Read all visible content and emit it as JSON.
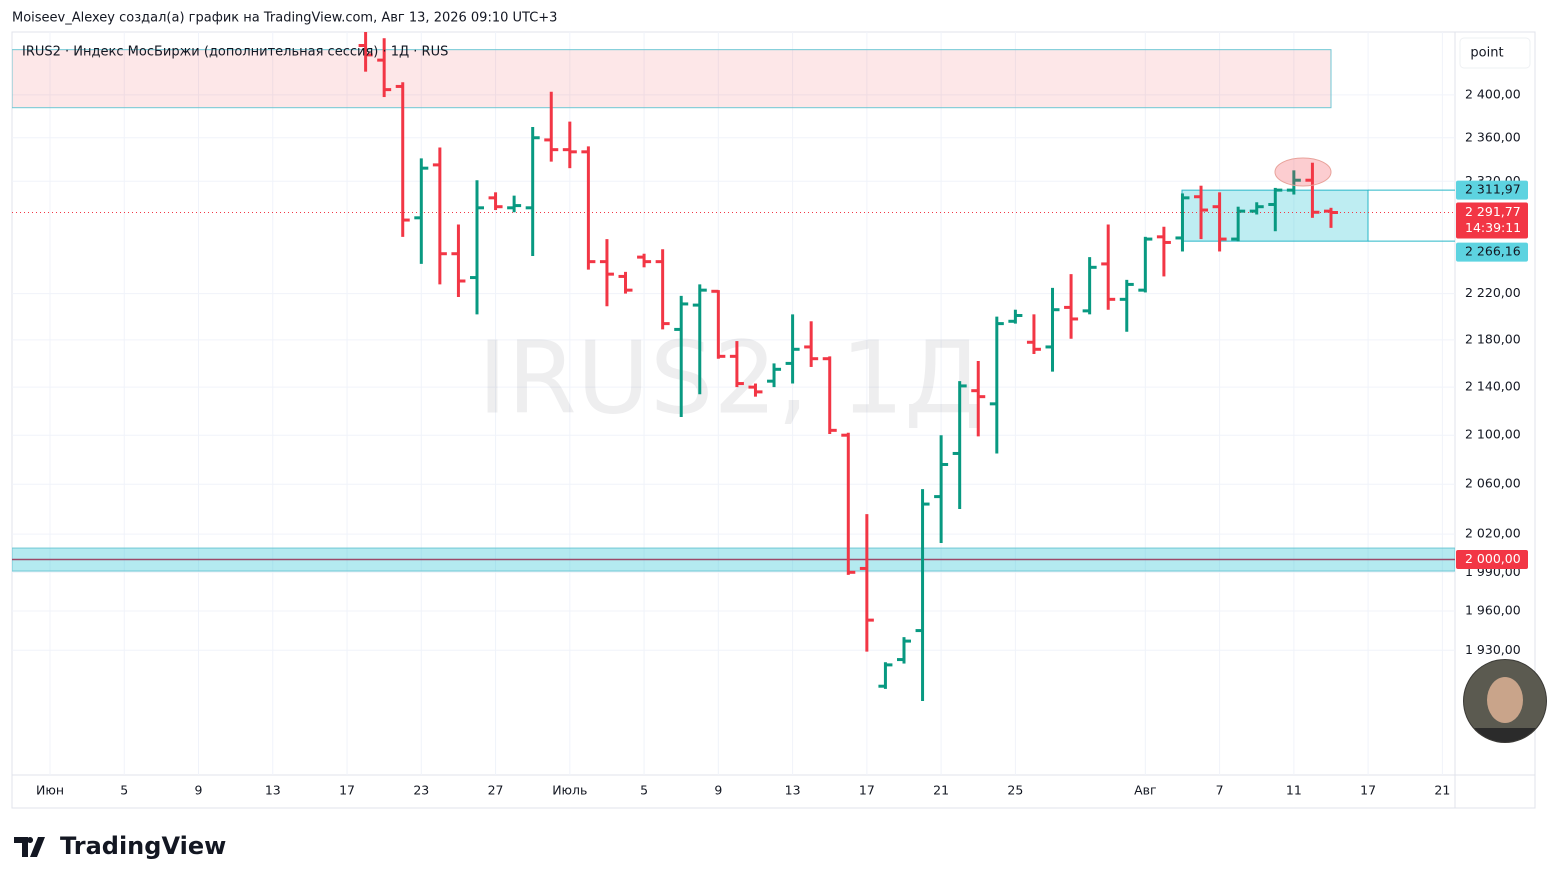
{
  "header": "Moiseev_Alexey создал(а) график на TradingView.com, Авг 13, 2026 09:10 UTC+3",
  "brand": "TradingView",
  "chart_data": {
    "type": "ohlc",
    "title": "IRUS2 · Индекс МосБиржи (дополнительная сессия) · 1Д · RUS",
    "watermark": "IRUS2, 1Д",
    "scale_button": "point",
    "log": true,
    "grid": true,
    "up_color": "#089981",
    "down_color": "#f23645",
    "categories": [
      "Июн",
      null,
      null,
      null,
      "5",
      null,
      null,
      null,
      "9",
      null,
      null,
      null,
      "13",
      null,
      null,
      null,
      "17",
      null,
      null,
      null,
      "23",
      null,
      null,
      null,
      "27",
      null,
      null,
      null,
      "Июль",
      null,
      null,
      null,
      "5",
      null,
      null,
      null,
      "9",
      null,
      null,
      null,
      "13",
      null,
      null,
      null,
      "17",
      null,
      null,
      null,
      "21",
      null,
      null,
      null,
      "25",
      null,
      null,
      null,
      null,
      null,
      null,
      "Авг",
      null,
      null,
      null,
      "7",
      null,
      null,
      null,
      "11",
      null,
      null,
      null,
      "17",
      null,
      null,
      null,
      "21"
    ],
    "open": [
      null,
      null,
      null,
      null,
      null,
      null,
      null,
      null,
      null,
      null,
      null,
      null,
      null,
      null,
      null,
      null,
      null,
      2447,
      2433,
      2408,
      2287,
      2335,
      2255,
      2234,
      2305,
      2296,
      2296,
      2358,
      2349,
      2347,
      2248,
      2235,
      2252,
      2248,
      2189,
      2210,
      2222,
      2166,
      2140,
      2145,
      2160,
      2174,
      2164,
      2100,
      1993,
      1903,
      1923,
      1945,
      2050,
      2085,
      2137,
      2126,
      2196,
      2178,
      2174,
      2208,
      2205,
      2246,
      2215,
      2223,
      2270,
      2269,
      2306,
      2297,
      2268,
      2293,
      2299,
      2312,
      2321,
      2293,
      null,
      null,
      null,
      null,
      null,
      null
    ],
    "high": [
      null,
      null,
      null,
      null,
      null,
      null,
      null,
      null,
      null,
      null,
      null,
      null,
      null,
      null,
      null,
      null,
      null,
      2460,
      2454,
      2412,
      2341,
      2351,
      2281,
      2321,
      2310,
      2307,
      2370,
      2403,
      2375,
      2352,
      2268,
      2239,
      2255,
      2259,
      2218,
      2228,
      2223,
      2179,
      2143,
      2160,
      2202,
      2196,
      2166,
      2102,
      2036,
      1921,
      1940,
      2056,
      2100,
      2145,
      2162,
      2200,
      2206,
      2202,
      2225,
      2237,
      2252,
      2281,
      2232,
      2270,
      2279,
      2309,
      2316,
      2310,
      2297,
      2301,
      2314,
      2330,
      2337,
      2296,
      null,
      null,
      null,
      null,
      null,
      null
    ],
    "low": [
      null,
      null,
      null,
      null,
      null,
      null,
      null,
      null,
      null,
      null,
      null,
      null,
      null,
      null,
      null,
      null,
      null,
      2422,
      2398,
      2270,
      2246,
      2228,
      2217,
      2202,
      2294,
      2292,
      2253,
      2338,
      2332,
      2241,
      2209,
      2220,
      2243,
      2189,
      2115,
      2134,
      2164,
      2140,
      2132,
      2140,
      2143,
      2157,
      2101,
      1988,
      1929,
      1901,
      1920,
      1892,
      2013,
      2040,
      2099,
      2085,
      2194,
      2168,
      2153,
      2181,
      2202,
      2206,
      2187,
      2221,
      2235,
      2257,
      2268,
      2257,
      2266,
      2290,
      2275,
      2308,
      2287,
      2278,
      null,
      null,
      null,
      null,
      null,
      null
    ],
    "close": [
      null,
      null,
      null,
      null,
      null,
      null,
      null,
      null,
      null,
      null,
      null,
      null,
      null,
      null,
      null,
      null,
      null,
      2438,
      2405,
      2285,
      2332,
      2255,
      2231,
      2296,
      2297,
      2298,
      2360,
      2349,
      2347,
      2248,
      2237,
      2223,
      2248,
      2194,
      2211,
      2223,
      2166,
      2143,
      2136,
      2155,
      2172,
      2164,
      2104,
      1990,
      1953,
      1919,
      1937,
      2044,
      2076,
      2141,
      2132,
      2194,
      2201,
      2172,
      2206,
      2198,
      2243,
      2215,
      2228,
      2268,
      2265,
      2305,
      2294,
      2268,
      2293,
      2297,
      2312,
      2321,
      2292,
      2291.77,
      null,
      null,
      null,
      null,
      null,
      null
    ],
    "ylim": [
      1840,
      2460
    ],
    "yticks": [
      {
        "value": 2400,
        "label": "2 400,00"
      },
      {
        "value": 2360,
        "label": "2 360,00"
      },
      {
        "value": 2320,
        "label": "2 320,00"
      },
      {
        "value": 2220,
        "label": "2 220,00"
      },
      {
        "value": 2180,
        "label": "2 180,00"
      },
      {
        "value": 2140,
        "label": "2 140,00"
      },
      {
        "value": 2100,
        "label": "2 100,00"
      },
      {
        "value": 2060,
        "label": "2 060,00"
      },
      {
        "value": 2020,
        "label": "2 020,00"
      },
      {
        "value": 1990,
        "label": "1 990,00"
      },
      {
        "value": 1960,
        "label": "1 960,00"
      },
      {
        "value": 1930,
        "label": "1 930,00"
      }
    ],
    "last_price": {
      "value": 2291.77,
      "label": "2 291,77"
    },
    "countdown": "14:39:11",
    "resistance_zone": {
      "top": 2443,
      "bottom": 2388
    },
    "range_box": {
      "top": {
        "value": 2311.97,
        "label": "2 311,97"
      },
      "bottom": {
        "value": 2266.16,
        "label": "2 266,16"
      }
    },
    "support_band": {
      "top": 2009,
      "bottom": 1991
    },
    "support_level": {
      "value": 2000,
      "label": "2 000,00"
    }
  }
}
